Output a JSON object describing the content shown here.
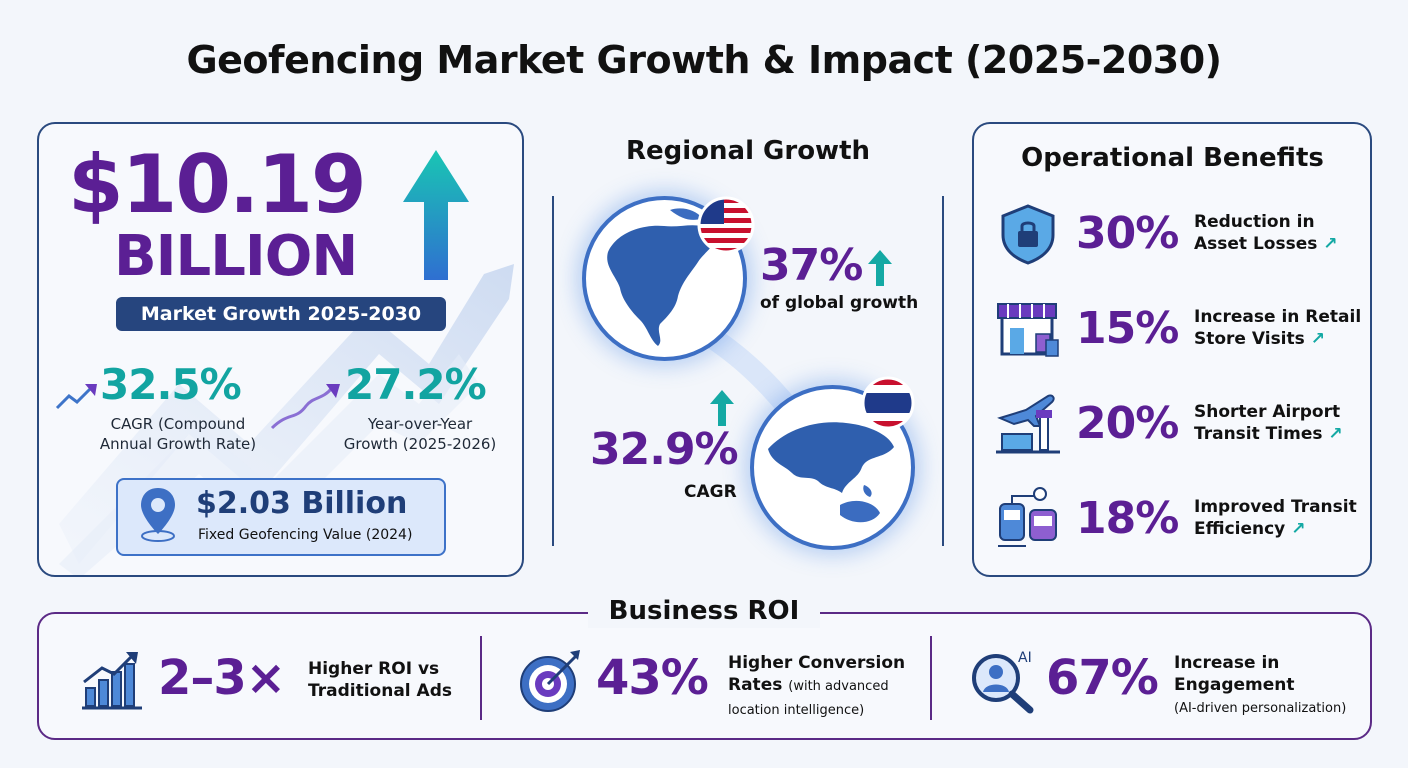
{
  "title": "Geofencing Market Growth & Impact (2025-2030)",
  "market": {
    "value": "$10.19",
    "unit": "BILLION",
    "label": "Market Growth 2025-2030",
    "cagr_value": "32.5%",
    "cagr_label_1": "CAGR (Compound",
    "cagr_label_2": "Annual Growth Rate)",
    "yoy_value": "27.2%",
    "yoy_label_1": "Year-over-Year",
    "yoy_label_2": "Growth (2025-2026)",
    "fixed_value": "$2.03 Billion",
    "fixed_label": "Fixed Geofencing Value (2024)"
  },
  "regional": {
    "heading": "Regional Growth",
    "north_america_pct": "37%",
    "north_america_label": "of global growth",
    "asia_pct": "32.9%",
    "asia_label": "CAGR"
  },
  "benefits": {
    "heading": "Operational Benefits",
    "items": [
      {
        "icon": "shield-lock-icon",
        "pct": "30%",
        "line1": "Reduction in",
        "line2": "Asset Losses"
      },
      {
        "icon": "storefront-icon",
        "pct": "15%",
        "line1": "Increase in Retail",
        "line2": "Store Visits"
      },
      {
        "icon": "airplane-airport-icon",
        "pct": "20%",
        "line1": "Shorter Airport",
        "line2": "Transit Times"
      },
      {
        "icon": "transit-vehicles-icon",
        "pct": "18%",
        "line1": "Improved Transit",
        "line2": "Efficiency"
      }
    ]
  },
  "roi": {
    "heading": "Business ROI",
    "items": [
      {
        "icon": "bar-chart-growth-icon",
        "value": "2–3×",
        "line1": "Higher ROI vs",
        "line2": "Traditional Ads",
        "note": ""
      },
      {
        "icon": "target-arrow-icon",
        "value": "43%",
        "line1": "Higher Conversion",
        "line2": "Rates",
        "note": "(with advanced",
        "note2": "location intelligence)"
      },
      {
        "icon": "ai-magnifier-user-icon",
        "icon_text": "AI",
        "value": "67%",
        "line1": "Increase in",
        "line2": "Engagement",
        "note": "(AI-driven personalization)"
      }
    ]
  },
  "colors": {
    "purple": "#5b1f94",
    "teal": "#12a4a1",
    "navy": "#26457e",
    "background": "#f3f6fb"
  }
}
